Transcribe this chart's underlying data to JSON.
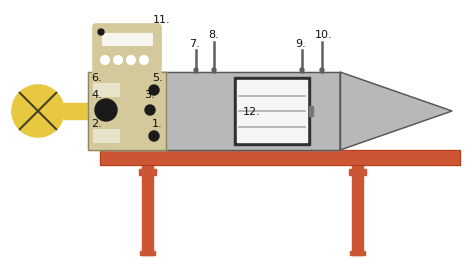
{
  "bg_color": "#ffffff",
  "body_color": "#b8b8b8",
  "control_panel_color": "#d4c99a",
  "table_color": "#cc5533",
  "fan_color": "#e8c840",
  "fan_outline": "#888833",
  "door_bg": "#f0f0f0",
  "door_frame": "#303030",
  "tray_line": "#999999",
  "probe_color": "#606060",
  "knob_color": "#1a1a1a",
  "display_color": "#e8e4cc",
  "meter_color": "#d4c99a",
  "meter_outline": "#888866",
  "label_color": "#111111",
  "outline_color": "#555555",
  "table_leg_color": "#cc5533"
}
